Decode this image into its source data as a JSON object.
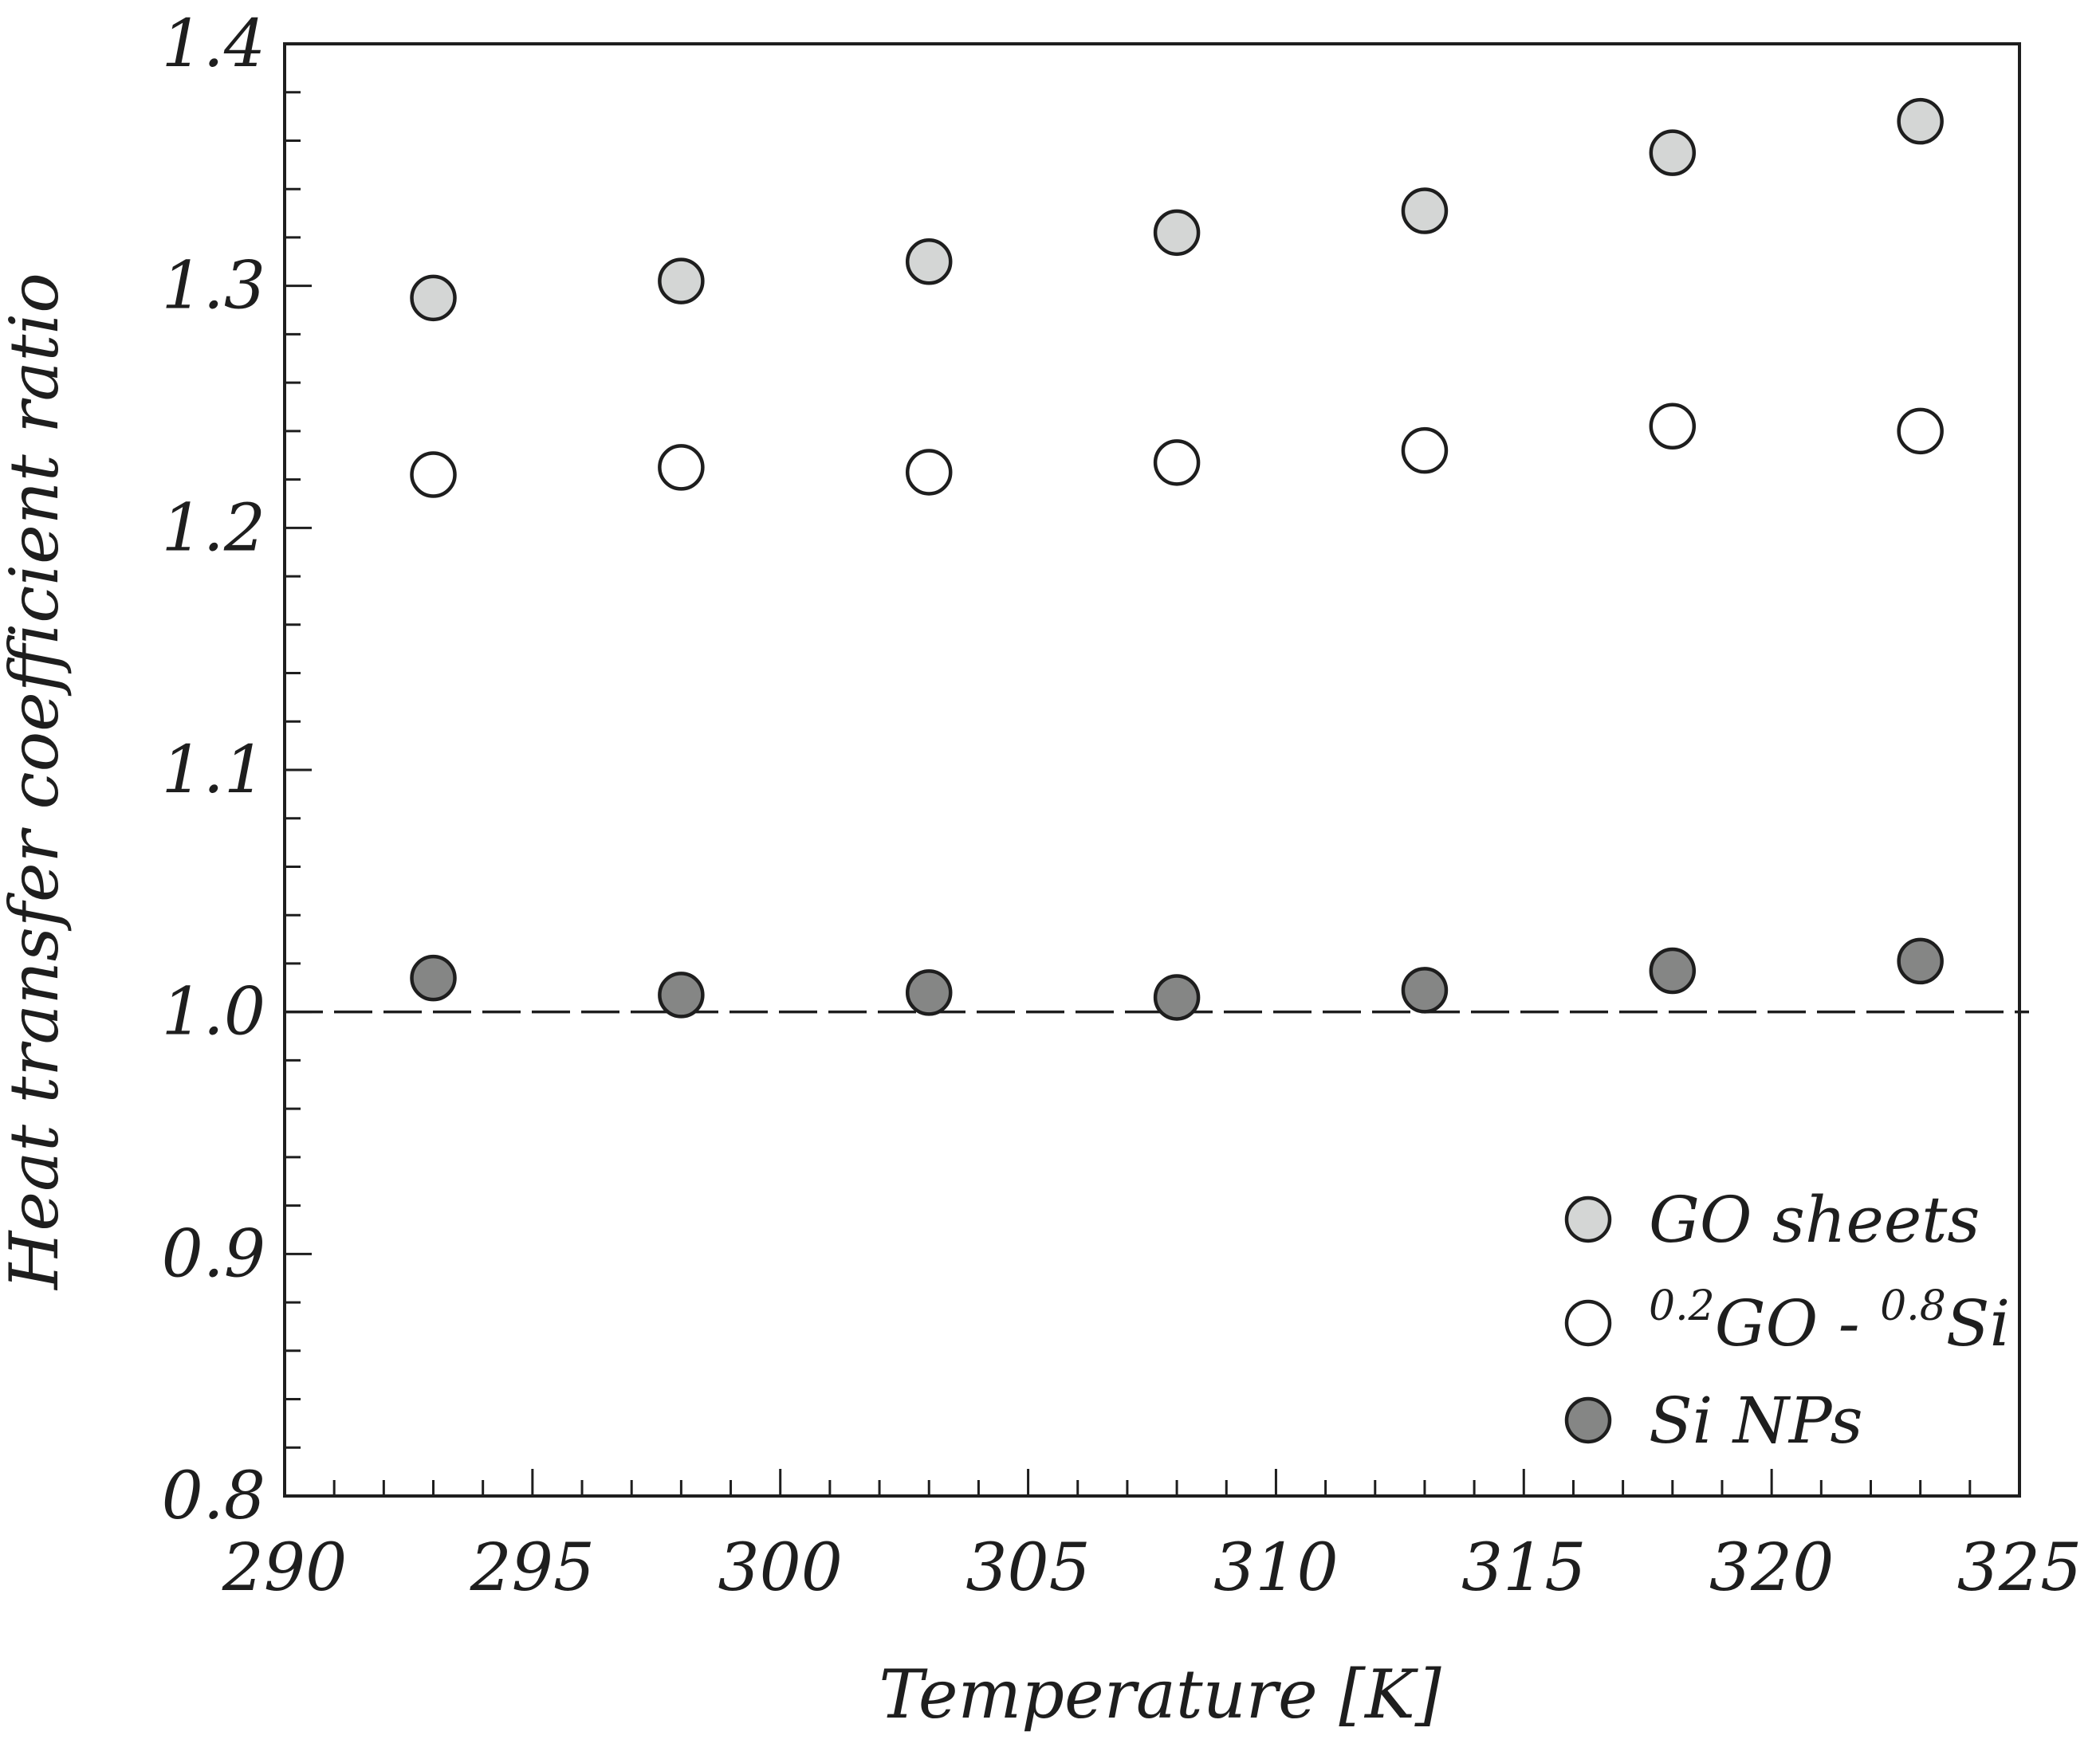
{
  "chart_data": {
    "type": "scatter",
    "xlabel": "Temperature [K]",
    "ylabel": "Heat transfer coefficient ratio",
    "xlim": [
      290,
      325
    ],
    "ylim": [
      0.8,
      1.4
    ],
    "x_ticks": [
      "290",
      "295",
      "300",
      "305",
      "310",
      "315",
      "320",
      "325"
    ],
    "y_ticks": [
      "0.8",
      "0.9",
      "1.0",
      "1.1",
      "1.2",
      "1.3",
      "1.4"
    ],
    "grid": false,
    "legend_position": "bottom-right",
    "reference_line": {
      "y": 1.0,
      "style": "dashed"
    },
    "series": [
      {
        "name": "GO sheets",
        "marker_fill": "#d4d6d5",
        "x": [
          293,
          298,
          303,
          308,
          313,
          318,
          323
        ],
        "y": [
          1.295,
          1.302,
          1.31,
          1.322,
          1.331,
          1.355,
          1.368
        ]
      },
      {
        "name": "0.2GO - 0.8Si",
        "legend_parts": [
          {
            "text": "0.2",
            "sup": true
          },
          {
            "text": "GO - ",
            "sup": false
          },
          {
            "text": "0.8",
            "sup": true
          },
          {
            "text": "Si",
            "sup": false
          }
        ],
        "marker_fill": "#ffffff",
        "x": [
          293,
          298,
          303,
          308,
          313,
          318,
          323
        ],
        "y": [
          1.222,
          1.225,
          1.223,
          1.227,
          1.232,
          1.242,
          1.24
        ]
      },
      {
        "name": "Si NPs",
        "marker_fill": "#858685",
        "x": [
          293,
          298,
          303,
          308,
          313,
          318,
          323
        ],
        "y": [
          1.014,
          1.007,
          1.008,
          1.006,
          1.009,
          1.017,
          1.021
        ]
      }
    ]
  }
}
